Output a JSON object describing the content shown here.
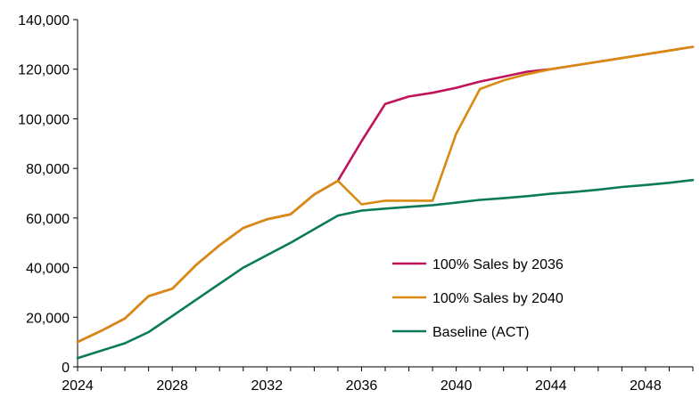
{
  "chart_data": {
    "type": "line",
    "title": "",
    "xlabel": "",
    "ylabel": "",
    "xlim": [
      2024,
      2050
    ],
    "ylim": [
      0,
      140000
    ],
    "x_ticks": [
      2024,
      2028,
      2032,
      2036,
      2040,
      2044,
      2048
    ],
    "x_tick_labels": [
      "2024",
      "2028",
      "2032",
      "2036",
      "2040",
      "2044",
      "2048"
    ],
    "y_ticks": [
      0,
      20000,
      40000,
      60000,
      80000,
      100000,
      120000,
      140000
    ],
    "y_tick_labels": [
      "0",
      "20,000",
      "40,000",
      "60,000",
      "80,000",
      "100,000",
      "120,000",
      "140,000"
    ],
    "grid": false,
    "legend_position": "bottom-right",
    "x": [
      2024,
      2025,
      2026,
      2027,
      2028,
      2029,
      2030,
      2031,
      2032,
      2033,
      2034,
      2035,
      2036,
      2037,
      2038,
      2039,
      2040,
      2041,
      2042,
      2043,
      2044,
      2045,
      2046,
      2047,
      2048,
      2049,
      2050
    ],
    "series": [
      {
        "name": "100% Sales by 2036",
        "color": "#c0145a",
        "values": [
          10000,
          14500,
          19500,
          28500,
          31500,
          41000,
          49000,
          56000,
          59500,
          61500,
          69500,
          75000,
          91000,
          106000,
          109000,
          110500,
          112500,
          115000,
          117000,
          119000,
          120000,
          121500,
          123000,
          124500,
          126000,
          127500,
          129000
        ]
      },
      {
        "name": "100% Sales by 2040",
        "color": "#d98a10",
        "values": [
          10000,
          14500,
          19500,
          28500,
          31500,
          41000,
          49000,
          56000,
          59500,
          61500,
          69500,
          75000,
          65500,
          67000,
          67000,
          67000,
          94000,
          112000,
          115500,
          118000,
          120000,
          121500,
          123000,
          124500,
          126000,
          127500,
          129000
        ]
      },
      {
        "name": "Baseline (ACT)",
        "color": "#0a7a5a",
        "values": [
          3500,
          6500,
          9500,
          14000,
          20500,
          27000,
          33500,
          40000,
          45000,
          50000,
          55500,
          61000,
          63000,
          63800,
          64500,
          65200,
          66200,
          67300,
          68000,
          68800,
          69800,
          70500,
          71400,
          72500,
          73300,
          74200,
          75300
        ]
      }
    ]
  }
}
